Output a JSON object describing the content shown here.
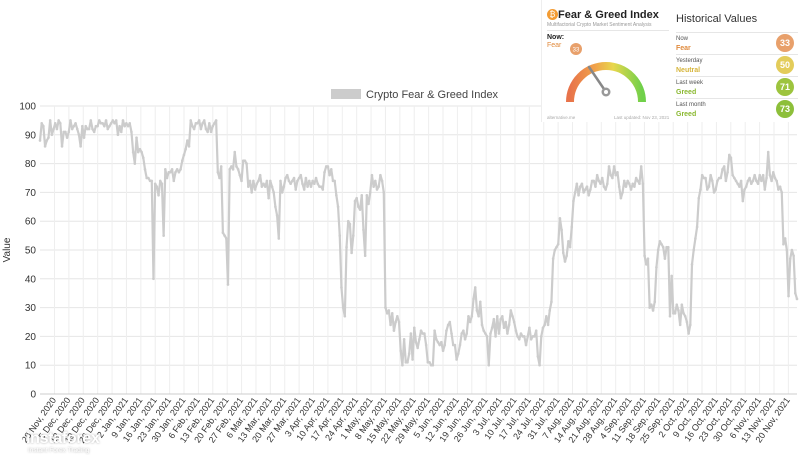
{
  "chart_data": {
    "type": "line",
    "title": "",
    "xlabel": "",
    "ylabel": "Value",
    "ylim": [
      0,
      100
    ],
    "yticks": [
      0,
      10,
      20,
      30,
      40,
      50,
      60,
      70,
      80,
      90,
      100
    ],
    "grid": true,
    "legend_position": "top",
    "series": [
      {
        "name": "Crypto Fear & Greed Index",
        "color": "#cccccc",
        "values": [
          88,
          94,
          93,
          86,
          88,
          89,
          95,
          90,
          92,
          94,
          92,
          95,
          94,
          86,
          91,
          91,
          89,
          91,
          95,
          92,
          93,
          94,
          92,
          90,
          86,
          93,
          89,
          93,
          92,
          92,
          95,
          92,
          91,
          93,
          93,
          95,
          94,
          94,
          93,
          95,
          92,
          93,
          94,
          95,
          94,
          95,
          90,
          93,
          91,
          95,
          93,
          94,
          93,
          94,
          91,
          84,
          80,
          89,
          84,
          85,
          84,
          82,
          78,
          75,
          75,
          74,
          74,
          40,
          73,
          72,
          69,
          74,
          73,
          55,
          78,
          75,
          77,
          77,
          78,
          74,
          77,
          78,
          77,
          78,
          81,
          83,
          85,
          88,
          86,
          95,
          93,
          92,
          94,
          94,
          95,
          92,
          94,
          95,
          92,
          91,
          94,
          91,
          93,
          94,
          95,
          77,
          75,
          79,
          56,
          55,
          54,
          38,
          78,
          79,
          78,
          84,
          79,
          78,
          76,
          74,
          81,
          81,
          80,
          72,
          74,
          70,
          74,
          71,
          73,
          74,
          76,
          72,
          73,
          72,
          74,
          68,
          74,
          72,
          70,
          65,
          62,
          54,
          74,
          70,
          72,
          75,
          76,
          74,
          73,
          74,
          75,
          71,
          74,
          75,
          76,
          73,
          71,
          75,
          72,
          74,
          72,
          74,
          73,
          75,
          73,
          72,
          72,
          71,
          77,
          79,
          79,
          76,
          78,
          74,
          74,
          69,
          65,
          55,
          37,
          30,
          27,
          51,
          60,
          59,
          49,
          55,
          67,
          68,
          65,
          64,
          69,
          57,
          48,
          69,
          66,
          70,
          76,
          72,
          74,
          71,
          72,
          76,
          74,
          70,
          30,
          28,
          29,
          24,
          28,
          22,
          25,
          27,
          25,
          15,
          10,
          19,
          11,
          11,
          14,
          21,
          12,
          23,
          18,
          16,
          19,
          22,
          21,
          21,
          17,
          11,
          11,
          10,
          10,
          22,
          19,
          18,
          17,
          18,
          15,
          17,
          22,
          24,
          25,
          21,
          17,
          17,
          12,
          14,
          17,
          21,
          22,
          19,
          21,
          27,
          25,
          27,
          33,
          37,
          29,
          27,
          32,
          24,
          22,
          21,
          20,
          10,
          21,
          23,
          26,
          20,
          27,
          21,
          26,
          27,
          23,
          25,
          21,
          24,
          29,
          27,
          25,
          22,
          20,
          19,
          21,
          20,
          20,
          17,
          20,
          23,
          19,
          20,
          20,
          22,
          13,
          10,
          20,
          23,
          24,
          27,
          24,
          29,
          32,
          47,
          50,
          51,
          52,
          61,
          57,
          49,
          46,
          48,
          53,
          51,
          58,
          67,
          70,
          73,
          69,
          72,
          73,
          70,
          71,
          72,
          69,
          71,
          74,
          74,
          72,
          76,
          74,
          73,
          75,
          72,
          71,
          73,
          79,
          76,
          75,
          79,
          76,
          77,
          72,
          68,
          70,
          74,
          72,
          74,
          73,
          71,
          73,
          72,
          75,
          74,
          73,
          79,
          73,
          48,
          45,
          47,
          30,
          31,
          29,
          32,
          44,
          50,
          53,
          52,
          51,
          47,
          51,
          51,
          27,
          41,
          28,
          28,
          31,
          29,
          24,
          31,
          28,
          27,
          25,
          21,
          24,
          45,
          50,
          54,
          58,
          68,
          71,
          76,
          75,
          75,
          71,
          72,
          76,
          74,
          70,
          71,
          74,
          75,
          75,
          78,
          79,
          74,
          77,
          83,
          82,
          76,
          75,
          74,
          73,
          72,
          74,
          67,
          71,
          72,
          74,
          75,
          73,
          74,
          76,
          74,
          73,
          76,
          74,
          76,
          71,
          75,
          84,
          76,
          74,
          77,
          75,
          74,
          71,
          72,
          70,
          52,
          54,
          50,
          34,
          47,
          50,
          48,
          35,
          33
        ]
      }
    ],
    "x_range": [
      "2020-11-23",
      "2021-11-23"
    ],
    "x_tick_labels": [
      "28 Nov, 2020",
      "5 Dec, 2020",
      "12 Dec, 2020",
      "19 Dec, 2020",
      "26 Dec, 2020",
      "2 Jan, 2021",
      "9 Jan, 2021",
      "16 Jan, 2021",
      "23 Jan, 2021",
      "30 Jan, 2021",
      "6 Feb, 2021",
      "13 Feb, 2021",
      "20 Feb, 2021",
      "27 Feb, 2021",
      "6 Mar, 2021",
      "13 Mar, 2021",
      "20 Mar, 2021",
      "27 Mar, 2021",
      "3 Apr, 2021",
      "10 Apr, 2021",
      "17 Apr, 2021",
      "24 Apr, 2021",
      "1 May, 2021",
      "8 May, 2021",
      "15 May, 2021",
      "22 May, 2021",
      "29 May, 2021",
      "5 Jun, 2021",
      "12 Jun, 2021",
      "19 Jun, 2021",
      "26 Jun, 2021",
      "3 Jul, 2021",
      "10 Jul, 2021",
      "17 Jul, 2021",
      "24 Jul, 2021",
      "31 Jul, 2021",
      "7 Aug, 2021",
      "14 Aug, 2021",
      "21 Aug, 2021",
      "28 Aug, 2021",
      "4 Sep, 2021",
      "11 Sep, 2021",
      "18 Sep, 2021",
      "25 Sep, 2021",
      "2 Oct, 2021",
      "9 Oct, 2021",
      "16 Oct, 2021",
      "23 Oct, 2021",
      "30 Oct, 2021",
      "6 Nov, 2021",
      "13 Nov, 2021",
      "20 Nov, 2021"
    ]
  },
  "fear_greed_widget": {
    "title": "Fear & Greed Index",
    "subtitle": "Multifactorial Crypto Market Sentiment Analysis",
    "now_label": "Now:",
    "now_classification": "Fear",
    "now_value": "33",
    "footer_left": "alternative.me",
    "footer_right": "Last updated: Nov 23, 2021"
  },
  "historical": {
    "title": "Historical Values",
    "rows": [
      {
        "period": "Now",
        "classification": "Fear",
        "value": "33",
        "color": "#e8a06b",
        "class_color": "#e08a3c"
      },
      {
        "period": "Yesterday",
        "classification": "Neutral",
        "value": "50",
        "color": "#e3cc5a",
        "class_color": "#d6b53a"
      },
      {
        "period": "Last week",
        "classification": "Greed",
        "value": "71",
        "color": "#9dc43e",
        "class_color": "#8ab82f"
      },
      {
        "period": "Last month",
        "classification": "Greed",
        "value": "73",
        "color": "#8dbf3a",
        "class_color": "#8ab82f"
      }
    ]
  },
  "watermark": {
    "name": "instaforex",
    "tagline": "Instant Forex Trading"
  }
}
